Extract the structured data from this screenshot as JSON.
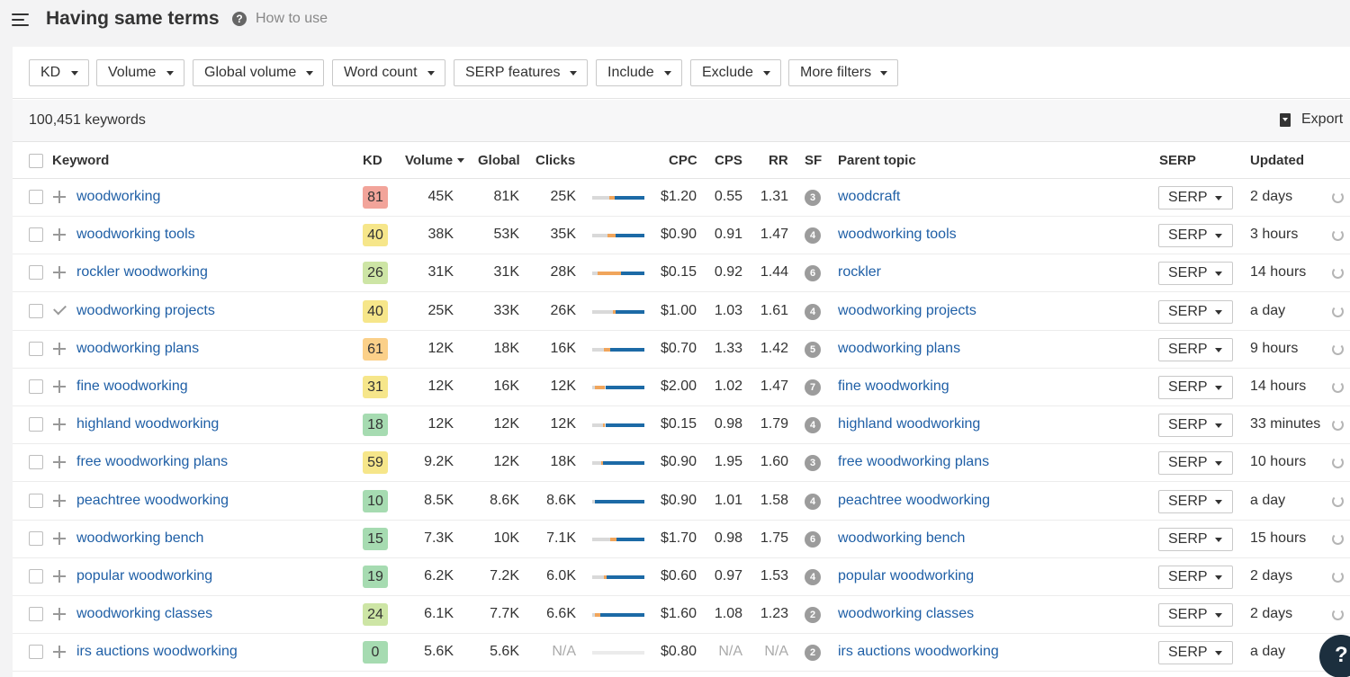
{
  "header": {
    "title": "Having same terms",
    "help_label": "How to use"
  },
  "filters": [
    "KD",
    "Volume",
    "Global volume",
    "Word count",
    "SERP features",
    "Include",
    "Exclude",
    "More filters"
  ],
  "summary": {
    "count": "100,451 keywords",
    "export_label": "Export"
  },
  "columns": [
    "Keyword",
    "KD",
    "Volume",
    "Global",
    "Clicks",
    "CPC",
    "CPS",
    "RR",
    "SF",
    "Parent topic",
    "SERP",
    "Updated"
  ],
  "serp_label": "SERP",
  "colors": {
    "link": "#1f5fa6",
    "kd_red": "#f2a49a",
    "kd_orange": "#fbd089",
    "kd_yellow": "#f6e68a",
    "kd_lightgreen": "#cde5a5",
    "kd_green": "#a6dbb1",
    "clicks_paid": "#f0a55b",
    "clicks_organic": "#1c6aa6"
  },
  "rows": [
    {
      "keyword": "woodworking",
      "added": false,
      "kd": "81",
      "kd_color": "#f2a49a",
      "volume": "45K",
      "global": "81K",
      "clicks": "25K",
      "clicks_split": [
        0,
        0.33,
        0.1,
        0.57
      ],
      "cpc": "$1.20",
      "cps": "0.55",
      "rr": "1.31",
      "sf": "3",
      "parent": "woodcraft",
      "updated": "2 days"
    },
    {
      "keyword": "woodworking tools",
      "added": false,
      "kd": "40",
      "kd_color": "#f6e68a",
      "volume": "38K",
      "global": "53K",
      "clicks": "35K",
      "clicks_split": [
        0,
        0.3,
        0.15,
        0.55
      ],
      "cpc": "$0.90",
      "cps": "0.91",
      "rr": "1.47",
      "sf": "4",
      "parent": "woodworking tools",
      "updated": "3 hours"
    },
    {
      "keyword": "rockler woodworking",
      "added": false,
      "kd": "26",
      "kd_color": "#cde5a5",
      "volume": "31K",
      "global": "31K",
      "clicks": "28K",
      "clicks_split": [
        0,
        0.1,
        0.45,
        0.45
      ],
      "cpc": "$0.15",
      "cps": "0.92",
      "rr": "1.44",
      "sf": "6",
      "parent": "rockler",
      "updated": "14 hours"
    },
    {
      "keyword": "woodworking projects",
      "added": true,
      "kd": "40",
      "kd_color": "#f6e68a",
      "volume": "25K",
      "global": "33K",
      "clicks": "26K",
      "clicks_split": [
        0,
        0.4,
        0.05,
        0.55
      ],
      "cpc": "$1.00",
      "cps": "1.03",
      "rr": "1.61",
      "sf": "4",
      "parent": "woodworking projects",
      "updated": "a day"
    },
    {
      "keyword": "woodworking plans",
      "added": false,
      "kd": "61",
      "kd_color": "#fbd089",
      "volume": "12K",
      "global": "18K",
      "clicks": "16K",
      "clicks_split": [
        0,
        0.22,
        0.12,
        0.66
      ],
      "cpc": "$0.70",
      "cps": "1.33",
      "rr": "1.42",
      "sf": "5",
      "parent": "woodworking plans",
      "updated": "9 hours"
    },
    {
      "keyword": "fine woodworking",
      "added": false,
      "kd": "31",
      "kd_color": "#f6e68a",
      "volume": "12K",
      "global": "16K",
      "clicks": "12K",
      "clicks_split": [
        0,
        0.05,
        0.2,
        0.75
      ],
      "cpc": "$2.00",
      "cps": "1.02",
      "rr": "1.47",
      "sf": "7",
      "parent": "fine woodworking",
      "updated": "14 hours"
    },
    {
      "keyword": "highland woodworking",
      "added": false,
      "kd": "18",
      "kd_color": "#a6dbb1",
      "volume": "12K",
      "global": "12K",
      "clicks": "12K",
      "clicks_split": [
        0,
        0.2,
        0.05,
        0.75
      ],
      "cpc": "$0.15",
      "cps": "0.98",
      "rr": "1.79",
      "sf": "4",
      "parent": "highland woodworking",
      "updated": "33 minutes"
    },
    {
      "keyword": "free woodworking plans",
      "added": false,
      "kd": "59",
      "kd_color": "#f6e68a",
      "volume": "9.2K",
      "global": "12K",
      "clicks": "18K",
      "clicks_split": [
        0,
        0.17,
        0.03,
        0.8
      ],
      "cpc": "$0.90",
      "cps": "1.95",
      "rr": "1.60",
      "sf": "3",
      "parent": "free woodworking plans",
      "updated": "10 hours"
    },
    {
      "keyword": "peachtree woodworking",
      "added": false,
      "kd": "10",
      "kd_color": "#a6dbb1",
      "volume": "8.5K",
      "global": "8.6K",
      "clicks": "8.6K",
      "clicks_split": [
        0,
        0.05,
        0,
        0.95
      ],
      "cpc": "$0.90",
      "cps": "1.01",
      "rr": "1.58",
      "sf": "4",
      "parent": "peachtree woodworking",
      "updated": "a day"
    },
    {
      "keyword": "woodworking bench",
      "added": false,
      "kd": "15",
      "kd_color": "#a6dbb1",
      "volume": "7.3K",
      "global": "10K",
      "clicks": "7.1K",
      "clicks_split": [
        0,
        0.35,
        0.12,
        0.53
      ],
      "cpc": "$1.70",
      "cps": "0.98",
      "rr": "1.75",
      "sf": "6",
      "parent": "woodworking bench",
      "updated": "15 hours"
    },
    {
      "keyword": "popular woodworking",
      "added": false,
      "kd": "19",
      "kd_color": "#a6dbb1",
      "volume": "6.2K",
      "global": "7.2K",
      "clicks": "6.0K",
      "clicks_split": [
        0,
        0.22,
        0.05,
        0.73
      ],
      "cpc": "$0.60",
      "cps": "0.97",
      "rr": "1.53",
      "sf": "4",
      "parent": "popular woodworking",
      "updated": "2 days"
    },
    {
      "keyword": "woodworking classes",
      "added": false,
      "kd": "24",
      "kd_color": "#cde5a5",
      "volume": "6.1K",
      "global": "7.7K",
      "clicks": "6.6K",
      "clicks_split": [
        0,
        0.05,
        0.1,
        0.85
      ],
      "cpc": "$1.60",
      "cps": "1.08",
      "rr": "1.23",
      "sf": "2",
      "parent": "woodworking classes",
      "updated": "2 days"
    },
    {
      "keyword": "irs auctions woodworking",
      "added": false,
      "kd": "0",
      "kd_color": "#a6dbb1",
      "volume": "5.6K",
      "global": "5.6K",
      "clicks": "N/A",
      "clicks_split": [
        1,
        0,
        0,
        0
      ],
      "cpc": "$0.80",
      "cps": "N/A",
      "rr": "N/A",
      "sf": "2",
      "parent": "irs auctions woodworking",
      "updated": "a day"
    }
  ]
}
